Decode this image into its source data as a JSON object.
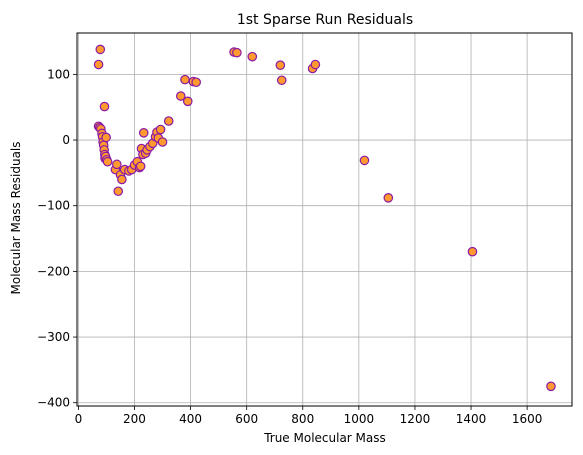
{
  "chart_data": {
    "type": "scatter",
    "title": "1st Sparse Run Residuals",
    "xlabel": "True Molecular Mass",
    "ylabel": "Molecular Mass Residuals",
    "xlim": [
      -5,
      1760
    ],
    "ylim": [
      -405,
      163
    ],
    "xticks": [
      0,
      200,
      400,
      600,
      800,
      1000,
      1200,
      1400,
      1600
    ],
    "xtick_labels": [
      "0",
      "200",
      "400",
      "600",
      "800",
      "1000",
      "1200",
      "1400",
      "1600"
    ],
    "yticks": [
      -400,
      -300,
      -200,
      -100,
      0,
      100
    ],
    "ytick_labels": [
      "−400",
      "−300",
      "−200",
      "−100",
      "0",
      "100"
    ],
    "grid": true,
    "marker_face_color": "#ff9a2e",
    "marker_edge_color": "#8b1aa6",
    "series": [
      {
        "points": [
          [
            72,
            115
          ],
          [
            78,
            138
          ],
          [
            72,
            21
          ],
          [
            76,
            19
          ],
          [
            80,
            17
          ],
          [
            84,
            10
          ],
          [
            86,
            5
          ],
          [
            88,
            -3
          ],
          [
            90,
            -8
          ],
          [
            92,
            -15
          ],
          [
            93,
            51
          ],
          [
            94,
            -22
          ],
          [
            95,
            -28
          ],
          [
            97,
            -25
          ],
          [
            99,
            4
          ],
          [
            101,
            -30
          ],
          [
            104,
            -33
          ],
          [
            132,
            -45
          ],
          [
            137,
            -37
          ],
          [
            142,
            -78
          ],
          [
            150,
            -53
          ],
          [
            155,
            -60
          ],
          [
            165,
            -45
          ],
          [
            180,
            -47
          ],
          [
            190,
            -45
          ],
          [
            200,
            -38
          ],
          [
            210,
            -33
          ],
          [
            218,
            -42
          ],
          [
            222,
            -40
          ],
          [
            225,
            -13
          ],
          [
            230,
            -22
          ],
          [
            233,
            11
          ],
          [
            240,
            -20
          ],
          [
            245,
            -15
          ],
          [
            255,
            -10
          ],
          [
            265,
            -5
          ],
          [
            275,
            5
          ],
          [
            280,
            12
          ],
          [
            285,
            3
          ],
          [
            293,
            16
          ],
          [
            300,
            -3
          ],
          [
            322,
            29
          ],
          [
            365,
            67
          ],
          [
            380,
            92
          ],
          [
            390,
            59
          ],
          [
            410,
            89
          ],
          [
            420,
            88
          ],
          [
            555,
            134
          ],
          [
            565,
            133
          ],
          [
            620,
            127
          ],
          [
            720,
            114
          ],
          [
            725,
            91
          ],
          [
            835,
            109
          ],
          [
            845,
            115
          ],
          [
            1020,
            -31
          ],
          [
            1105,
            -88
          ],
          [
            1405,
            -170
          ],
          [
            1685,
            -375
          ]
        ]
      }
    ]
  }
}
